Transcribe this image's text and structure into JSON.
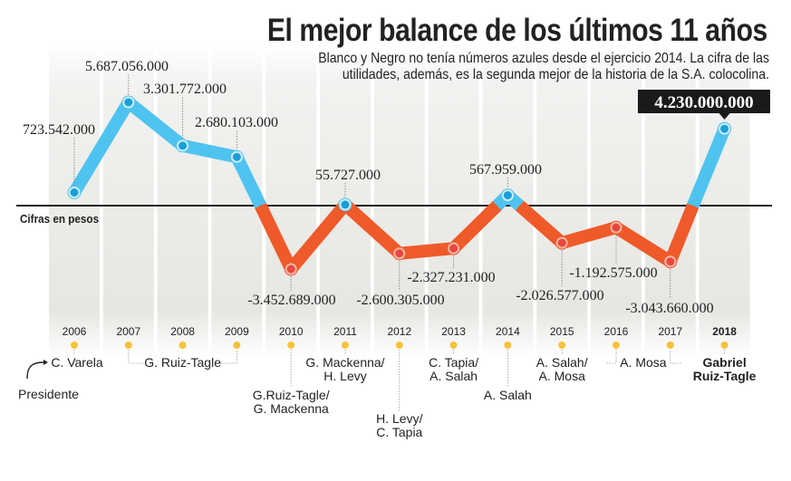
{
  "header": {
    "title": "El mejor balance de los últimos 11 años",
    "subtitle": "Blanco y Negro no tenía números azules desde el ejercicio 2014. La cifra de las utilidades, además, es la segunda mejor de la historia de la S.A. colocolina."
  },
  "chart_data": {
    "type": "line",
    "title": "El mejor balance de los últimos 11 años",
    "subtitle": "Blanco y Negro no tenía números azules desde el ejercicio 2014. La cifra de las utilidades, además, es la segunda mejor de la historia de la S.A. colocolina.",
    "ylabel": "Cifras en pesos",
    "xlabel": "",
    "categories": [
      "2006",
      "2007",
      "2008",
      "2009",
      "2010",
      "2011",
      "2012",
      "2013",
      "2014",
      "2015",
      "2016",
      "2017",
      "2018"
    ],
    "values": [
      723542000,
      5687056000,
      3301772000,
      2680103000,
      -3452689000,
      55727000,
      -2600305000,
      -2327231000,
      567959000,
      -2026577000,
      -1192575000,
      -3043660000,
      4230000000
    ],
    "value_labels": [
      "723.542.000",
      "5.687.056.000",
      "3.301.772.000",
      "2.680.103.000",
      "-3.452.689.000",
      "55.727.000",
      "-2.600.305.000",
      "-2.327.231.000",
      "567.959.000",
      "-2.026.577.000",
      "-1.192.575.000",
      "-3.043.660.000",
      "4.230.000.000"
    ],
    "highlight_index": 12,
    "zero_line": true,
    "positive_color": "#4fc3ef",
    "negative_color": "#ef5a2a",
    "timeline_label": "Presidente",
    "presidents": [
      {
        "label": "C. Varela",
        "years": [
          "2006"
        ]
      },
      {
        "label": "G. Ruiz-Tagle",
        "years": [
          "2007",
          "2008",
          "2009"
        ]
      },
      {
        "label": "G.Ruiz-Tagle/\nG. Mackenna",
        "years": [
          "2010"
        ]
      },
      {
        "label": "G. Mackenna/\nH. Levy",
        "years": [
          "2011"
        ]
      },
      {
        "label": "H. Levy/\nC. Tapia",
        "years": [
          "2012"
        ]
      },
      {
        "label": "C. Tapia/\nA. Salah",
        "years": [
          "2013"
        ]
      },
      {
        "label": "A. Salah",
        "years": [
          "2014"
        ]
      },
      {
        "label": "A. Salah/\nA. Mosa",
        "years": [
          "2015"
        ]
      },
      {
        "label": "A. Mosa",
        "years": [
          "2016",
          "2017"
        ]
      },
      {
        "label": "Gabriel\nRuiz-Tagle",
        "years": [
          "2018"
        ],
        "bold": true
      }
    ]
  },
  "colors": {
    "positive": "#4fc3ef",
    "negative": "#ef5a2a",
    "timeline_dot": "#f7c23a",
    "highlight_box": "#1a1a1a"
  }
}
